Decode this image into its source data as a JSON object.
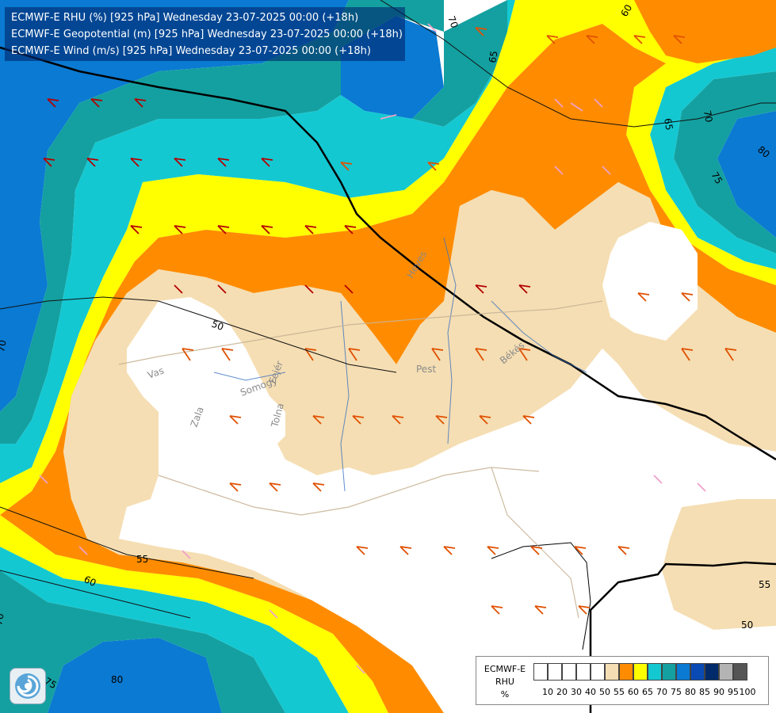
{
  "header": {
    "line1": "ECMWF-E RHU (%) [925 hPa] Wednesday 23-07-2025 00:00 (+18h)",
    "line2": "ECMWF-E Geopotential (m) [925 hPa] Wednesday 23-07-2025 00:00 (+18h)",
    "line3": "ECMWF-E Wind (m/s) [925 hPa] Wednesday 23-07-2025 00:00 (+18h)"
  },
  "contour_labels": [
    "70",
    "60",
    "65",
    "65",
    "70",
    "80",
    "75",
    "50",
    "55",
    "60",
    "70",
    "75",
    "80",
    "50",
    "55",
    "70"
  ],
  "place_labels": [
    "Vas",
    "Somogy",
    "Zala",
    "Tolna",
    "Fejér",
    "Pest",
    "Békés",
    "Heves"
  ],
  "legend": {
    "title_line1": "ECMWF-E",
    "title_line2": "RHU",
    "title_line3": "%",
    "ticks": [
      "10",
      "20",
      "30",
      "40",
      "50",
      "55",
      "60",
      "65",
      "70",
      "75",
      "80",
      "85",
      "90",
      "95",
      "100"
    ],
    "colors": [
      "#ffffff",
      "#ffffff",
      "#ffffff",
      "#ffffff",
      "#ffffff",
      "#f5deb3",
      "#ff8c00",
      "#ffff00",
      "#14c8d2",
      "#14a0a0",
      "#0a7ad2",
      "#0a4ab4",
      "#002a6a",
      "#b4b4b4",
      "#555555"
    ]
  },
  "colors": {
    "rhu_50": "#ffffff",
    "rhu_55": "#f5deb3",
    "rhu_60": "#ff8c00",
    "rhu_65": "#ffff00",
    "rhu_70": "#14c8d2",
    "rhu_75": "#14a0a0",
    "rhu_80": "#0a7ad2",
    "rhu_85": "#0a4ab4",
    "rhu_90": "#002a6a"
  },
  "icons": {
    "logo": "ecmwf-swirl-icon"
  }
}
